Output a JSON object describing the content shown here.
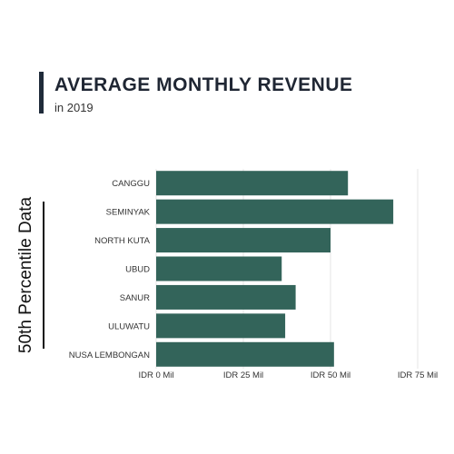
{
  "header": {
    "title": "AVERAGE MONTHLY REVENUE",
    "subtitle": "in 2019"
  },
  "side_label": "50th Percentile Data",
  "colors": {
    "bar": "#33645a",
    "grid": "#e6e6e6",
    "accent_bar": "#1f2b3a"
  },
  "chart_data": {
    "type": "bar",
    "orientation": "horizontal",
    "categories": [
      "CANGGU",
      "SEMINYAK",
      "NORTH KUTA",
      "UBUD",
      "SANUR",
      "ULUWATU",
      "NUSA LEMBONGAN"
    ],
    "values": [
      55,
      68,
      50,
      36,
      40,
      37,
      51
    ],
    "xlim": [
      0,
      75
    ],
    "xticks": [
      0,
      25,
      50,
      75
    ],
    "xtick_labels": [
      "IDR 0 Mil",
      "IDR 25 Mil",
      "IDR 50 Mil",
      "IDR 75 Mil"
    ],
    "grid": true
  }
}
